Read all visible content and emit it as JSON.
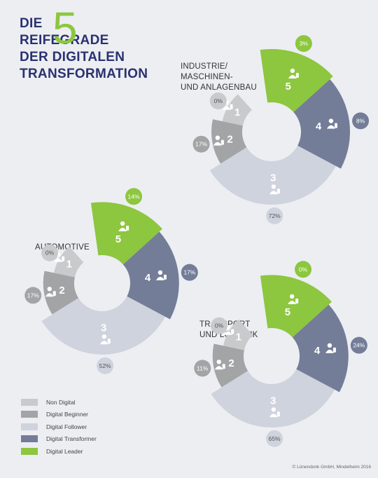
{
  "title": {
    "line1": "DIE",
    "big_number": "5",
    "line2": "REIFEGRADE",
    "line3": "DER DIGITALEN",
    "line4": "TRANSFORMATION"
  },
  "colors": {
    "level_1": "#c9cacb",
    "level_2": "#a3a4a6",
    "level_3": "#cfd3dd",
    "level_4": "#737d98",
    "level_5": "#8dc63f"
  },
  "legend": [
    {
      "label": "Non Digital",
      "color": "#c9cacb"
    },
    {
      "label": "Digital Beginner",
      "color": "#a3a4a6"
    },
    {
      "label": "Digital Follower",
      "color": "#cfd3dd"
    },
    {
      "label": "Digital Transformer",
      "color": "#737d98"
    },
    {
      "label": "Digital Leader",
      "color": "#8dc63f"
    }
  ],
  "chart_data": [
    {
      "type": "radial",
      "sector_lines": [
        "INDUSTRIE/",
        "MASCHINEN-",
        "UND ANLAGENBAU"
      ],
      "levels": [
        "1",
        "2",
        "3",
        "4",
        "5"
      ],
      "values": [
        0,
        17,
        72,
        8,
        3
      ],
      "value_labels": [
        "0%",
        "17%",
        "72%",
        "8%",
        "3%"
      ]
    },
    {
      "type": "radial",
      "sector_lines": [
        "AUTOMOTIVE"
      ],
      "levels": [
        "1",
        "2",
        "3",
        "4",
        "5"
      ],
      "values": [
        0,
        17,
        52,
        17,
        14
      ],
      "value_labels": [
        "0%",
        "17%",
        "52%",
        "17%",
        "14%"
      ]
    },
    {
      "type": "radial",
      "sector_lines": [
        "TRANSPORT",
        "UND LOGISTIK"
      ],
      "levels": [
        "1",
        "2",
        "3",
        "4",
        "5"
      ],
      "values": [
        0,
        11,
        65,
        24,
        0
      ],
      "value_labels": [
        "0%",
        "11%",
        "65%",
        "24%",
        "0%"
      ]
    }
  ],
  "copyright": "© Lünendonk GmbH, Mindelheim 2016"
}
